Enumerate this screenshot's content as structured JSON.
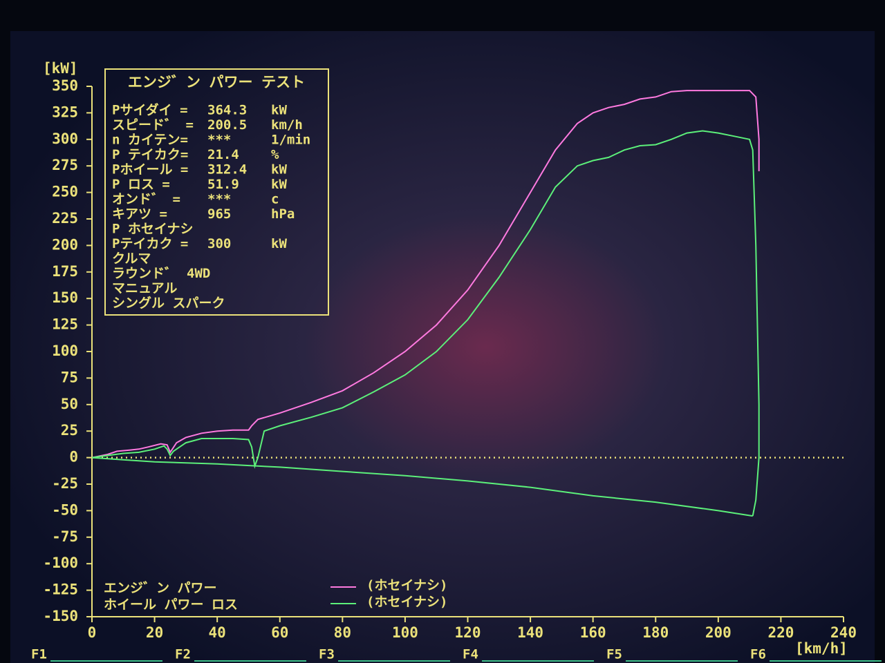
{
  "chart_data": {
    "type": "line",
    "y_label": "[kW]",
    "x_label": "[km/h]",
    "xlim": [
      0,
      240
    ],
    "xticks": [
      0,
      20,
      40,
      60,
      80,
      100,
      120,
      140,
      160,
      180,
      200,
      220,
      240
    ],
    "ylim": [
      -150,
      350
    ],
    "yticks": [
      -150,
      -125,
      -100,
      -75,
      -50,
      -25,
      0,
      25,
      50,
      75,
      100,
      125,
      150,
      175,
      200,
      225,
      250,
      275,
      300,
      325,
      350
    ],
    "grid": false,
    "annotations": [
      "エンジ゛ン パワー",
      "ホイール パワー ロス"
    ],
    "series": [
      {
        "name": "(ホセイナシ)",
        "color": "#ff7ae0",
        "x": [
          0,
          5,
          8,
          12,
          15,
          18,
          22,
          24,
          25,
          27,
          30,
          35,
          40,
          45,
          50,
          51,
          53,
          60,
          70,
          80,
          90,
          100,
          110,
          120,
          130,
          140,
          148,
          155,
          160,
          165,
          170,
          175,
          180,
          185,
          190,
          195,
          200,
          205,
          210,
          212,
          213,
          213
        ],
        "values": [
          0,
          3,
          6,
          7,
          8,
          10,
          13,
          12,
          5,
          14,
          19,
          23,
          25,
          26,
          26,
          30,
          36,
          42,
          52,
          63,
          80,
          100,
          125,
          158,
          200,
          250,
          290,
          315,
          325,
          330,
          333,
          338,
          340,
          345,
          346,
          346,
          346,
          346,
          346,
          340,
          300,
          270
        ]
      },
      {
        "name": "(ホセイナシ)",
        "color": "#5cf07a",
        "x": [
          0,
          5,
          10,
          15,
          20,
          23,
          24,
          25,
          26,
          30,
          35,
          40,
          45,
          50,
          51,
          52,
          53,
          55,
          60,
          70,
          80,
          90,
          100,
          110,
          120,
          130,
          140,
          148,
          155,
          160,
          165,
          170,
          175,
          180,
          185,
          190,
          195,
          200,
          205,
          210,
          211,
          212,
          213,
          213,
          212,
          211
        ],
        "values": [
          0,
          2,
          4,
          5,
          8,
          11,
          8,
          2,
          6,
          14,
          18,
          18,
          18,
          17,
          10,
          -8,
          0,
          25,
          30,
          38,
          47,
          62,
          78,
          100,
          130,
          170,
          215,
          255,
          275,
          280,
          283,
          290,
          294,
          295,
          300,
          306,
          308,
          306,
          303,
          300,
          290,
          200,
          50,
          0,
          -40,
          -55
        ]
      },
      {
        "color": "#5cf07a",
        "x": [
          0,
          10,
          20,
          40,
          60,
          80,
          100,
          120,
          140,
          160,
          180,
          200,
          211
        ],
        "values": [
          0,
          -2,
          -4,
          -6,
          -9,
          -13,
          -17,
          -22,
          -28,
          -36,
          -42,
          -50,
          -55
        ]
      }
    ]
  },
  "info_panel": {
    "title": "エンジ゛ン パワー テスト",
    "rows": [
      [
        "Pサイダイ =",
        "364.3",
        "kW"
      ],
      [
        "スピード゛ =",
        "200.5",
        "km/h"
      ],
      [
        "n カイテン=",
        "***",
        "1/min"
      ],
      [
        "P テイカク=",
        "21.4",
        "%"
      ],
      [
        "Pホイール =",
        "312.4",
        "kW"
      ],
      [
        "P ロス =",
        "51.9",
        "kW"
      ],
      [
        "オンド゛ =",
        "***",
        "c"
      ],
      [
        "キアツ =",
        "965",
        "hPa"
      ],
      [
        "P ホセイナシ"
      ],
      [
        "Pテイカク =",
        "300",
        "kW"
      ],
      [
        "クルマ"
      ],
      [
        "ラウンド゛",
        "4WD"
      ],
      [
        "マニュアル"
      ],
      [
        "シングル スパーク"
      ]
    ]
  },
  "function_keys": [
    "F1",
    "F2",
    "F3",
    "F4",
    "F5",
    "F6"
  ]
}
